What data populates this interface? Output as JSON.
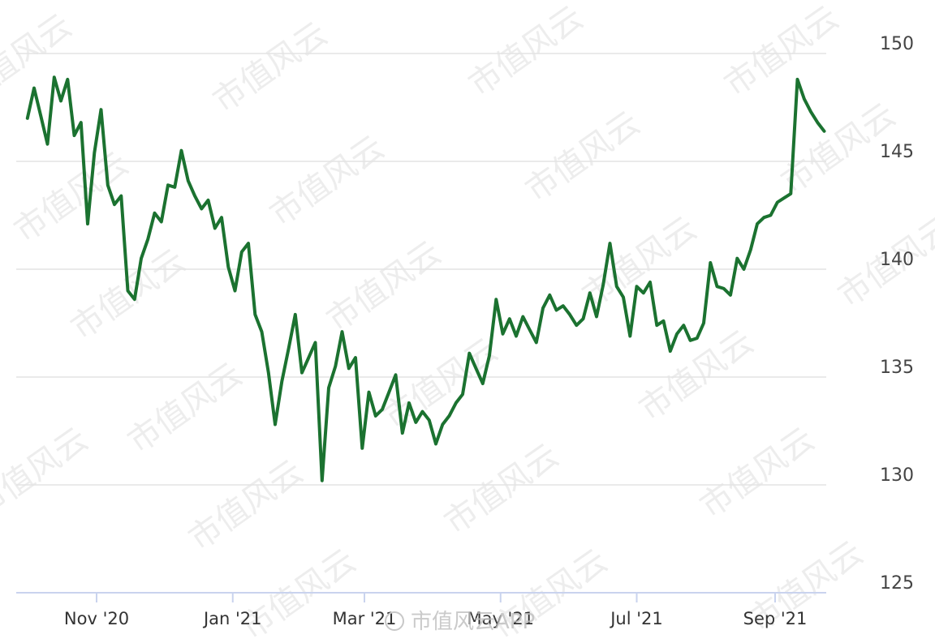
{
  "chart_data": {
    "type": "line",
    "title": "",
    "xlabel": "",
    "ylabel": "",
    "ylim": [
      125,
      150
    ],
    "y_ticks": [
      "125",
      "130",
      "135",
      "140",
      "145",
      "150"
    ],
    "x_ticks": [
      "Nov '20",
      "Jan '21",
      "Mar '21",
      "May '21",
      "Jul '21",
      "Sep '21"
    ],
    "grid": "horizontal",
    "legend": "none",
    "series": [
      {
        "color": "#1b7230",
        "x": [
          "2020-10-01",
          "2020-10-04",
          "2020-10-07",
          "2020-10-10",
          "2020-10-13",
          "2020-10-16",
          "2020-10-19",
          "2020-10-22",
          "2020-10-25",
          "2020-10-28",
          "2020-10-31",
          "2020-11-03",
          "2020-11-06",
          "2020-11-09",
          "2020-11-12",
          "2020-11-15",
          "2020-11-18",
          "2020-11-21",
          "2020-11-24",
          "2020-11-27",
          "2020-11-30",
          "2020-12-03",
          "2020-12-06",
          "2020-12-09",
          "2020-12-12",
          "2020-12-15",
          "2020-12-18",
          "2020-12-21",
          "2020-12-24",
          "2020-12-27",
          "2020-12-30",
          "2021-01-02",
          "2021-01-05",
          "2021-01-08",
          "2021-01-11",
          "2021-01-14",
          "2021-01-17",
          "2021-01-20",
          "2021-01-23",
          "2021-01-26",
          "2021-01-29",
          "2021-02-01",
          "2021-02-04",
          "2021-02-07",
          "2021-02-10",
          "2021-02-13",
          "2021-02-16",
          "2021-02-19",
          "2021-02-22",
          "2021-02-25",
          "2021-02-28",
          "2021-03-03",
          "2021-03-06",
          "2021-03-09",
          "2021-03-12",
          "2021-03-15",
          "2021-03-18",
          "2021-03-21",
          "2021-03-24",
          "2021-03-27",
          "2021-03-30",
          "2021-04-02",
          "2021-04-05",
          "2021-04-08",
          "2021-04-11",
          "2021-04-14",
          "2021-04-17",
          "2021-04-20",
          "2021-04-23",
          "2021-04-26",
          "2021-04-29",
          "2021-05-02",
          "2021-05-05",
          "2021-05-08",
          "2021-05-11",
          "2021-05-14",
          "2021-05-17",
          "2021-05-20",
          "2021-05-23",
          "2021-05-26",
          "2021-05-29",
          "2021-06-01",
          "2021-06-04",
          "2021-06-07",
          "2021-06-10",
          "2021-06-13",
          "2021-06-16",
          "2021-06-19",
          "2021-06-22",
          "2021-06-25",
          "2021-06-28",
          "2021-07-01",
          "2021-07-04",
          "2021-07-07",
          "2021-07-10",
          "2021-07-13",
          "2021-07-16",
          "2021-07-19",
          "2021-07-22",
          "2021-07-25",
          "2021-07-28",
          "2021-07-31",
          "2021-08-03",
          "2021-08-06",
          "2021-08-09",
          "2021-08-12",
          "2021-08-15",
          "2021-08-18",
          "2021-08-21",
          "2021-08-24",
          "2021-08-27",
          "2021-08-30",
          "2021-09-02",
          "2021-09-05",
          "2021-09-08",
          "2021-09-11",
          "2021-09-14",
          "2021-09-17",
          "2021-09-20",
          "2021-09-23"
        ],
        "values": [
          147.0,
          148.4,
          147.1,
          145.8,
          148.9,
          147.8,
          148.8,
          146.2,
          146.8,
          142.1,
          145.4,
          147.4,
          143.9,
          143.0,
          143.4,
          139.0,
          138.6,
          140.5,
          141.4,
          142.6,
          142.2,
          143.9,
          143.8,
          145.5,
          144.1,
          143.4,
          142.8,
          143.2,
          141.9,
          142.4,
          140.1,
          139.0,
          140.8,
          141.2,
          137.9,
          137.1,
          135.2,
          132.8,
          134.8,
          136.3,
          137.9,
          135.2,
          135.9,
          136.6,
          130.2,
          134.5,
          135.5,
          137.1,
          135.4,
          135.9,
          131.7,
          134.3,
          133.2,
          133.5,
          134.3,
          135.1,
          132.4,
          133.8,
          132.9,
          133.4,
          133.0,
          131.9,
          132.8,
          133.2,
          133.8,
          134.2,
          136.1,
          135.4,
          134.7,
          136.0,
          138.6,
          137.0,
          137.7,
          136.9,
          137.8,
          137.2,
          136.6,
          138.2,
          138.8,
          138.1,
          138.3,
          137.9,
          137.4,
          137.7,
          138.9,
          137.8,
          139.3,
          141.2,
          139.2,
          138.7,
          136.9,
          139.2,
          138.9,
          139.4,
          137.4,
          137.6,
          136.2,
          137.0,
          137.4,
          136.7,
          136.8,
          137.5,
          140.3,
          139.2,
          139.1,
          138.8,
          140.5,
          140.0,
          140.9,
          142.1,
          142.4,
          142.5,
          143.1,
          143.3,
          143.5,
          148.8,
          147.9,
          147.3,
          146.8,
          146.4
        ]
      }
    ]
  },
  "watermark": {
    "text": "市值风云",
    "brand": "市值风云APP"
  }
}
